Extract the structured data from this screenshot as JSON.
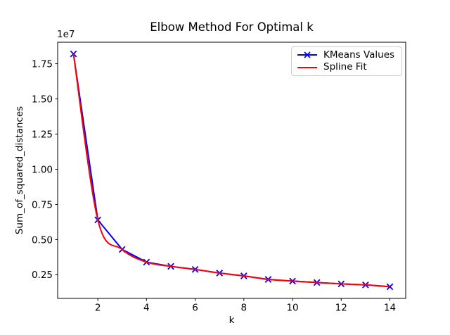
{
  "chart_data": {
    "type": "line",
    "title": "Elbow Method For Optimal k",
    "xlabel": "k",
    "ylabel": "Sum_of_squared_distances",
    "y_offset_text": "1e7",
    "x": [
      1,
      2,
      3,
      4,
      5,
      6,
      7,
      8,
      9,
      10,
      11,
      12,
      13,
      14
    ],
    "series": [
      {
        "name": "KMeans Values",
        "color": "#0000ff",
        "marker": "x",
        "smooth": false,
        "values": [
          18200000,
          6400000,
          4300000,
          3400000,
          3100000,
          2880000,
          2620000,
          2420000,
          2170000,
          2050000,
          1950000,
          1850000,
          1780000,
          1650000
        ]
      },
      {
        "name": "Spline Fit",
        "color": "#ff0000",
        "marker": null,
        "smooth": true,
        "values": [
          18200000,
          6400000,
          4300000,
          3400000,
          3100000,
          2880000,
          2620000,
          2420000,
          2170000,
          2050000,
          1950000,
          1850000,
          1780000,
          1650000
        ]
      }
    ],
    "xlim": [
      0.35,
      14.65
    ],
    "ylim": [
      820000,
      19030000
    ],
    "xticks": [
      2,
      4,
      6,
      8,
      10,
      12,
      14
    ],
    "xtick_labels": [
      "2",
      "4",
      "6",
      "8",
      "10",
      "12",
      "14"
    ],
    "yticks": [
      2500000,
      5000000,
      7500000,
      10000000,
      12500000,
      15000000,
      17500000
    ],
    "ytick_labels": [
      "0.25",
      "0.50",
      "0.75",
      "1.00",
      "1.25",
      "1.50",
      "1.75"
    ],
    "grid": false,
    "legend": {
      "location": "upper right"
    }
  }
}
